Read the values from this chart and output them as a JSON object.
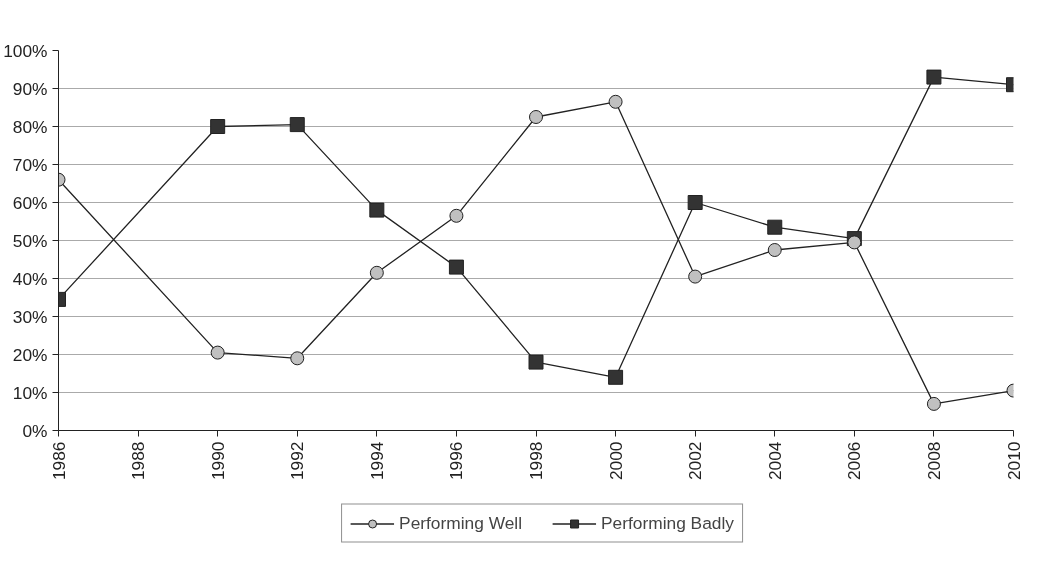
{
  "chart_data": {
    "type": "line",
    "x": [
      1986,
      1990,
      1992,
      1994,
      1996,
      1998,
      2000,
      2002,
      2004,
      2006,
      2008,
      2010
    ],
    "series": [
      {
        "name": "Performing Well",
        "color": "#c0c0c0",
        "marker": "circle",
        "values": [
          66,
          20.5,
          19,
          41.5,
          56.5,
          82.5,
          86.5,
          40.5,
          47.5,
          49.5,
          7,
          10.5
        ]
      },
      {
        "name": "Performing Badly",
        "color": "#333333",
        "marker": "square",
        "values": [
          34.5,
          80,
          80.5,
          58,
          43,
          18,
          14,
          60,
          53.5,
          50.5,
          93,
          91
        ]
      }
    ],
    "xlim": [
      1986,
      2010
    ],
    "xticks": [
      1986,
      1988,
      1990,
      1992,
      1994,
      1996,
      1998,
      2000,
      2002,
      2004,
      2006,
      2008,
      2010
    ],
    "ylim": [
      0,
      100
    ],
    "yticks": [
      {
        "value": 0,
        "label": "0%"
      },
      {
        "value": 10,
        "label": "10%"
      },
      {
        "value": 20,
        "label": "20%"
      },
      {
        "value": 30,
        "label": "30%"
      },
      {
        "value": 40,
        "label": "40%"
      },
      {
        "value": 50,
        "label": "50%"
      },
      {
        "value": 60,
        "label": "60%"
      },
      {
        "value": 70,
        "label": "70%"
      },
      {
        "value": 80,
        "label": "80%"
      },
      {
        "value": 90,
        "label": "90%"
      },
      {
        "value": 100,
        "label": "100%"
      }
    ],
    "grid": "y",
    "legend": "bottom",
    "line_style": "solid"
  }
}
